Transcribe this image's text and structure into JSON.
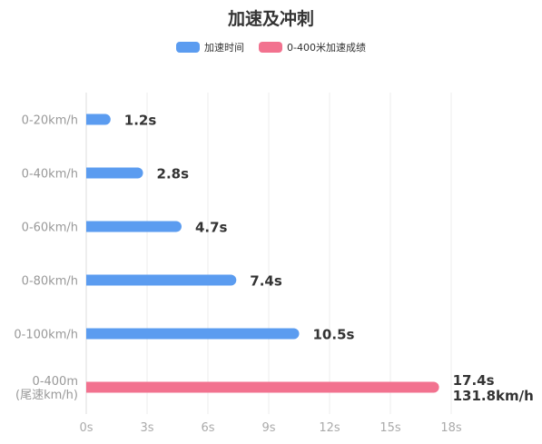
{
  "chart_data": {
    "type": "bar",
    "orientation": "horizontal",
    "title": "加速及冲刺",
    "legend": [
      {
        "name": "加速时间",
        "color": "#5B9CF0"
      },
      {
        "name": "0-400米加速成绩",
        "color": "#F2728F"
      }
    ],
    "categories": [
      {
        "lines": [
          "0-20km/h"
        ]
      },
      {
        "lines": [
          "0-40km/h"
        ]
      },
      {
        "lines": [
          "0-60km/h"
        ]
      },
      {
        "lines": [
          "0-80km/h"
        ]
      },
      {
        "lines": [
          "0-100km/h"
        ]
      },
      {
        "lines": [
          "0-400m",
          "(尾速km/h)"
        ]
      }
    ],
    "series": [
      {
        "name": "加速时间",
        "color": "#5B9CF0",
        "values": [
          1.2,
          2.8,
          4.7,
          7.4,
          10.5,
          null
        ]
      },
      {
        "name": "0-400米加速成绩",
        "color": "#F2728F",
        "values": [
          null,
          null,
          null,
          null,
          null,
          17.4
        ]
      }
    ],
    "data_labels": [
      [
        "1.2s"
      ],
      [
        "2.8s"
      ],
      [
        "4.7s"
      ],
      [
        "7.4s"
      ],
      [
        "10.5s"
      ],
      [
        "17.4s",
        "131.8km/h"
      ]
    ],
    "x_ticks": [
      {
        "value": 0,
        "label": "0s"
      },
      {
        "value": 3,
        "label": "3s"
      },
      {
        "value": 6,
        "label": "6s"
      },
      {
        "value": 9,
        "label": "9s"
      },
      {
        "value": 12,
        "label": "12s"
      },
      {
        "value": 15,
        "label": "15s"
      },
      {
        "value": 18,
        "label": "18s"
      }
    ],
    "xlim": [
      0,
      18
    ],
    "grid": true
  }
}
